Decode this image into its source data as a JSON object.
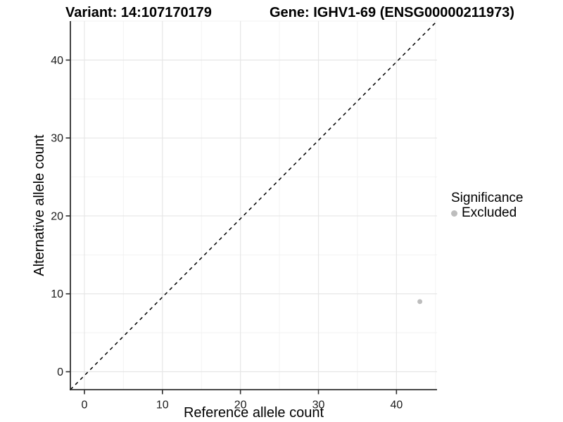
{
  "chart_data": {
    "type": "scatter",
    "titles": {
      "variant": "Variant: 14:107170179",
      "gene": "Gene: IGHV1-69 (ENSG00000211973)"
    },
    "xlabel": "Reference allele count",
    "ylabel": "Alternative allele count",
    "xlim": [
      -1.8,
      45.2
    ],
    "ylim": [
      -2.3,
      45.0
    ],
    "x_ticks": [
      0,
      10,
      20,
      30,
      40
    ],
    "y_ticks": [
      0,
      10,
      20,
      30,
      40
    ],
    "x_minor_gridlines": [
      5,
      15,
      25,
      35,
      45
    ],
    "y_minor_gridlines": [
      5,
      15,
      25,
      35,
      45
    ],
    "grid": "major+minor",
    "reference_line": {
      "kind": "identity y=x",
      "style": "dashed",
      "color": "#000000"
    },
    "series": [
      {
        "name": "Excluded",
        "color": "#bdbdbd",
        "marker": "circle",
        "points": [
          [
            43,
            9
          ]
        ]
      }
    ],
    "legend": {
      "position": "right",
      "title": "Significance",
      "items": [
        {
          "label": "Excluded",
          "color": "#bdbdbd"
        }
      ]
    },
    "style": {
      "background": "#ffffff",
      "axis_line_color": "#2e2e2e",
      "tick_color": "#2e2e2e",
      "tick_label_color": "#1a1a1a",
      "grid_major_color": "#e6e6e6",
      "grid_minor_color": "#f2f2f2"
    }
  }
}
